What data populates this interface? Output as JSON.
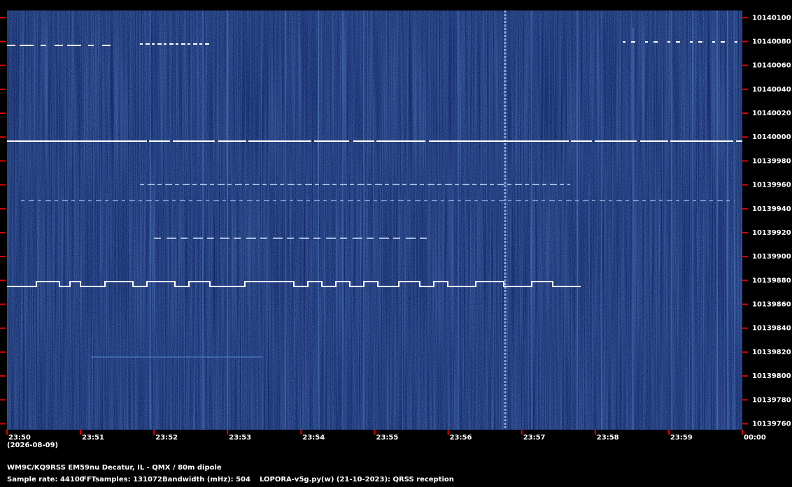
{
  "chart_data": {
    "type": "spectrogram",
    "ylim": [
      10139755,
      10140106
    ],
    "yticks": [
      10140100,
      10140080,
      10140060,
      10140040,
      10140020,
      10140000,
      10139980,
      10139960,
      10139940,
      10139920,
      10139900,
      10139880,
      10139860,
      10139840,
      10139820,
      10139800,
      10139780,
      10139760
    ],
    "categories": [
      "23:50",
      "23:51",
      "23:52",
      "23:53",
      "23:54",
      "23:55",
      "23:56",
      "23:57",
      "23:58",
      "23:59",
      "00:00"
    ],
    "date": "(2026-08-09)",
    "station": "WM9C/KQ9RSS EM59nu Decatur, IL - QMX / 80m dipole",
    "sample_rate": "Sample rate: 44100",
    "fft_samples": "FFTsamples: 131072",
    "bandwidth": "Bandwidth (mHz): 504",
    "software": "LOPORA-v5g.py(w) (21-10-2023): QRSS reception",
    "tick_color": "#e00000"
  }
}
